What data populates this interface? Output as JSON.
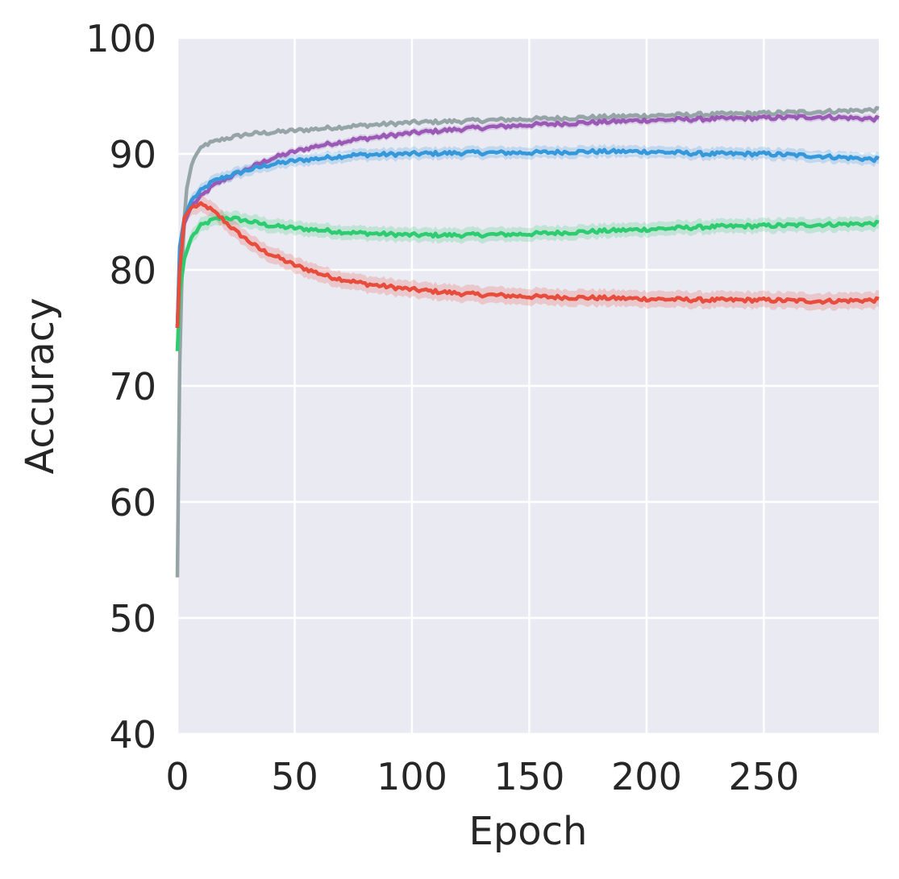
{
  "chart_data": {
    "type": "line",
    "title": "",
    "xlabel": "Epoch",
    "ylabel": "Accuracy",
    "xlim": [
      0,
      299
    ],
    "ylim": [
      40,
      100
    ],
    "xticks": [
      0,
      50,
      100,
      150,
      200,
      250
    ],
    "yticks": [
      40,
      50,
      60,
      70,
      80,
      90,
      100
    ],
    "xtick_labels": [
      "0",
      "50",
      "100",
      "150",
      "200",
      "250"
    ],
    "ytick_labels": [
      "40",
      "50",
      "60",
      "70",
      "80",
      "90",
      "100"
    ],
    "grid": true,
    "background": "#eaeaf2",
    "grid_color": "#ffffff",
    "legend": "none",
    "series": [
      {
        "color": "#95a5a6",
        "band": 0.2,
        "points": [
          [
            0,
            53.5
          ],
          [
            1,
            72
          ],
          [
            2,
            80
          ],
          [
            3,
            84.5
          ],
          [
            4,
            87
          ],
          [
            6,
            89
          ],
          [
            8,
            90.0
          ],
          [
            12,
            90.8
          ],
          [
            20,
            91.3
          ],
          [
            30,
            91.7
          ],
          [
            50,
            92.0
          ],
          [
            75,
            92.4
          ],
          [
            100,
            92.7
          ],
          [
            150,
            93.0
          ],
          [
            200,
            93.3
          ],
          [
            250,
            93.5
          ],
          [
            299,
            93.8
          ]
        ]
      },
      {
        "color": "#9b59b6",
        "band": 0.3,
        "points": [
          [
            0,
            75
          ],
          [
            1,
            81
          ],
          [
            3,
            84
          ],
          [
            6,
            85.5
          ],
          [
            10,
            86.3
          ],
          [
            15,
            87.2
          ],
          [
            20,
            87.8
          ],
          [
            30,
            88.7
          ],
          [
            40,
            89.6
          ],
          [
            50,
            90.2
          ],
          [
            60,
            90.7
          ],
          [
            75,
            91.2
          ],
          [
            100,
            91.8
          ],
          [
            125,
            92.2
          ],
          [
            150,
            92.5
          ],
          [
            175,
            92.7
          ],
          [
            200,
            92.9
          ],
          [
            225,
            93.0
          ],
          [
            250,
            93.1
          ],
          [
            275,
            93.2
          ],
          [
            299,
            93.0
          ]
        ]
      },
      {
        "color": "#3498db",
        "band": 0.5,
        "points": [
          [
            0,
            75
          ],
          [
            1,
            82
          ],
          [
            3,
            84.5
          ],
          [
            6,
            86.0
          ],
          [
            10,
            86.8
          ],
          [
            15,
            87.6
          ],
          [
            20,
            88.0
          ],
          [
            30,
            88.6
          ],
          [
            40,
            89.1
          ],
          [
            50,
            89.4
          ],
          [
            60,
            89.6
          ],
          [
            75,
            89.9
          ],
          [
            100,
            90.0
          ],
          [
            125,
            90.1
          ],
          [
            150,
            90.1
          ],
          [
            175,
            90.2
          ],
          [
            200,
            90.2
          ],
          [
            225,
            90.0
          ],
          [
            250,
            90.0
          ],
          [
            275,
            89.8
          ],
          [
            299,
            89.5
          ]
        ]
      },
      {
        "color": "#2ecc71",
        "band": 0.6,
        "points": [
          [
            0,
            73
          ],
          [
            1,
            78
          ],
          [
            3,
            81
          ],
          [
            6,
            82.8
          ],
          [
            10,
            83.8
          ],
          [
            15,
            84.3
          ],
          [
            20,
            84.5
          ],
          [
            25,
            84.4
          ],
          [
            30,
            84.2
          ],
          [
            40,
            83.8
          ],
          [
            50,
            83.6
          ],
          [
            75,
            83.2
          ],
          [
            100,
            83.0
          ],
          [
            125,
            83.0
          ],
          [
            150,
            83.1
          ],
          [
            175,
            83.3
          ],
          [
            200,
            83.5
          ],
          [
            225,
            83.7
          ],
          [
            250,
            83.8
          ],
          [
            275,
            83.9
          ],
          [
            299,
            84.0
          ]
        ]
      },
      {
        "color": "#e74c3c",
        "band": 0.7,
        "points": [
          [
            0,
            75
          ],
          [
            1,
            80
          ],
          [
            3,
            84.5
          ],
          [
            6,
            85.4
          ],
          [
            10,
            85.6
          ],
          [
            13,
            85.4
          ],
          [
            18,
            84.6
          ],
          [
            25,
            83.3
          ],
          [
            35,
            81.8
          ],
          [
            50,
            80.4
          ],
          [
            65,
            79.4
          ],
          [
            80,
            78.8
          ],
          [
            100,
            78.3
          ],
          [
            125,
            77.9
          ],
          [
            150,
            77.7
          ],
          [
            175,
            77.6
          ],
          [
            200,
            77.5
          ],
          [
            225,
            77.4
          ],
          [
            250,
            77.4
          ],
          [
            275,
            77.3
          ],
          [
            299,
            77.4
          ]
        ]
      }
    ]
  }
}
